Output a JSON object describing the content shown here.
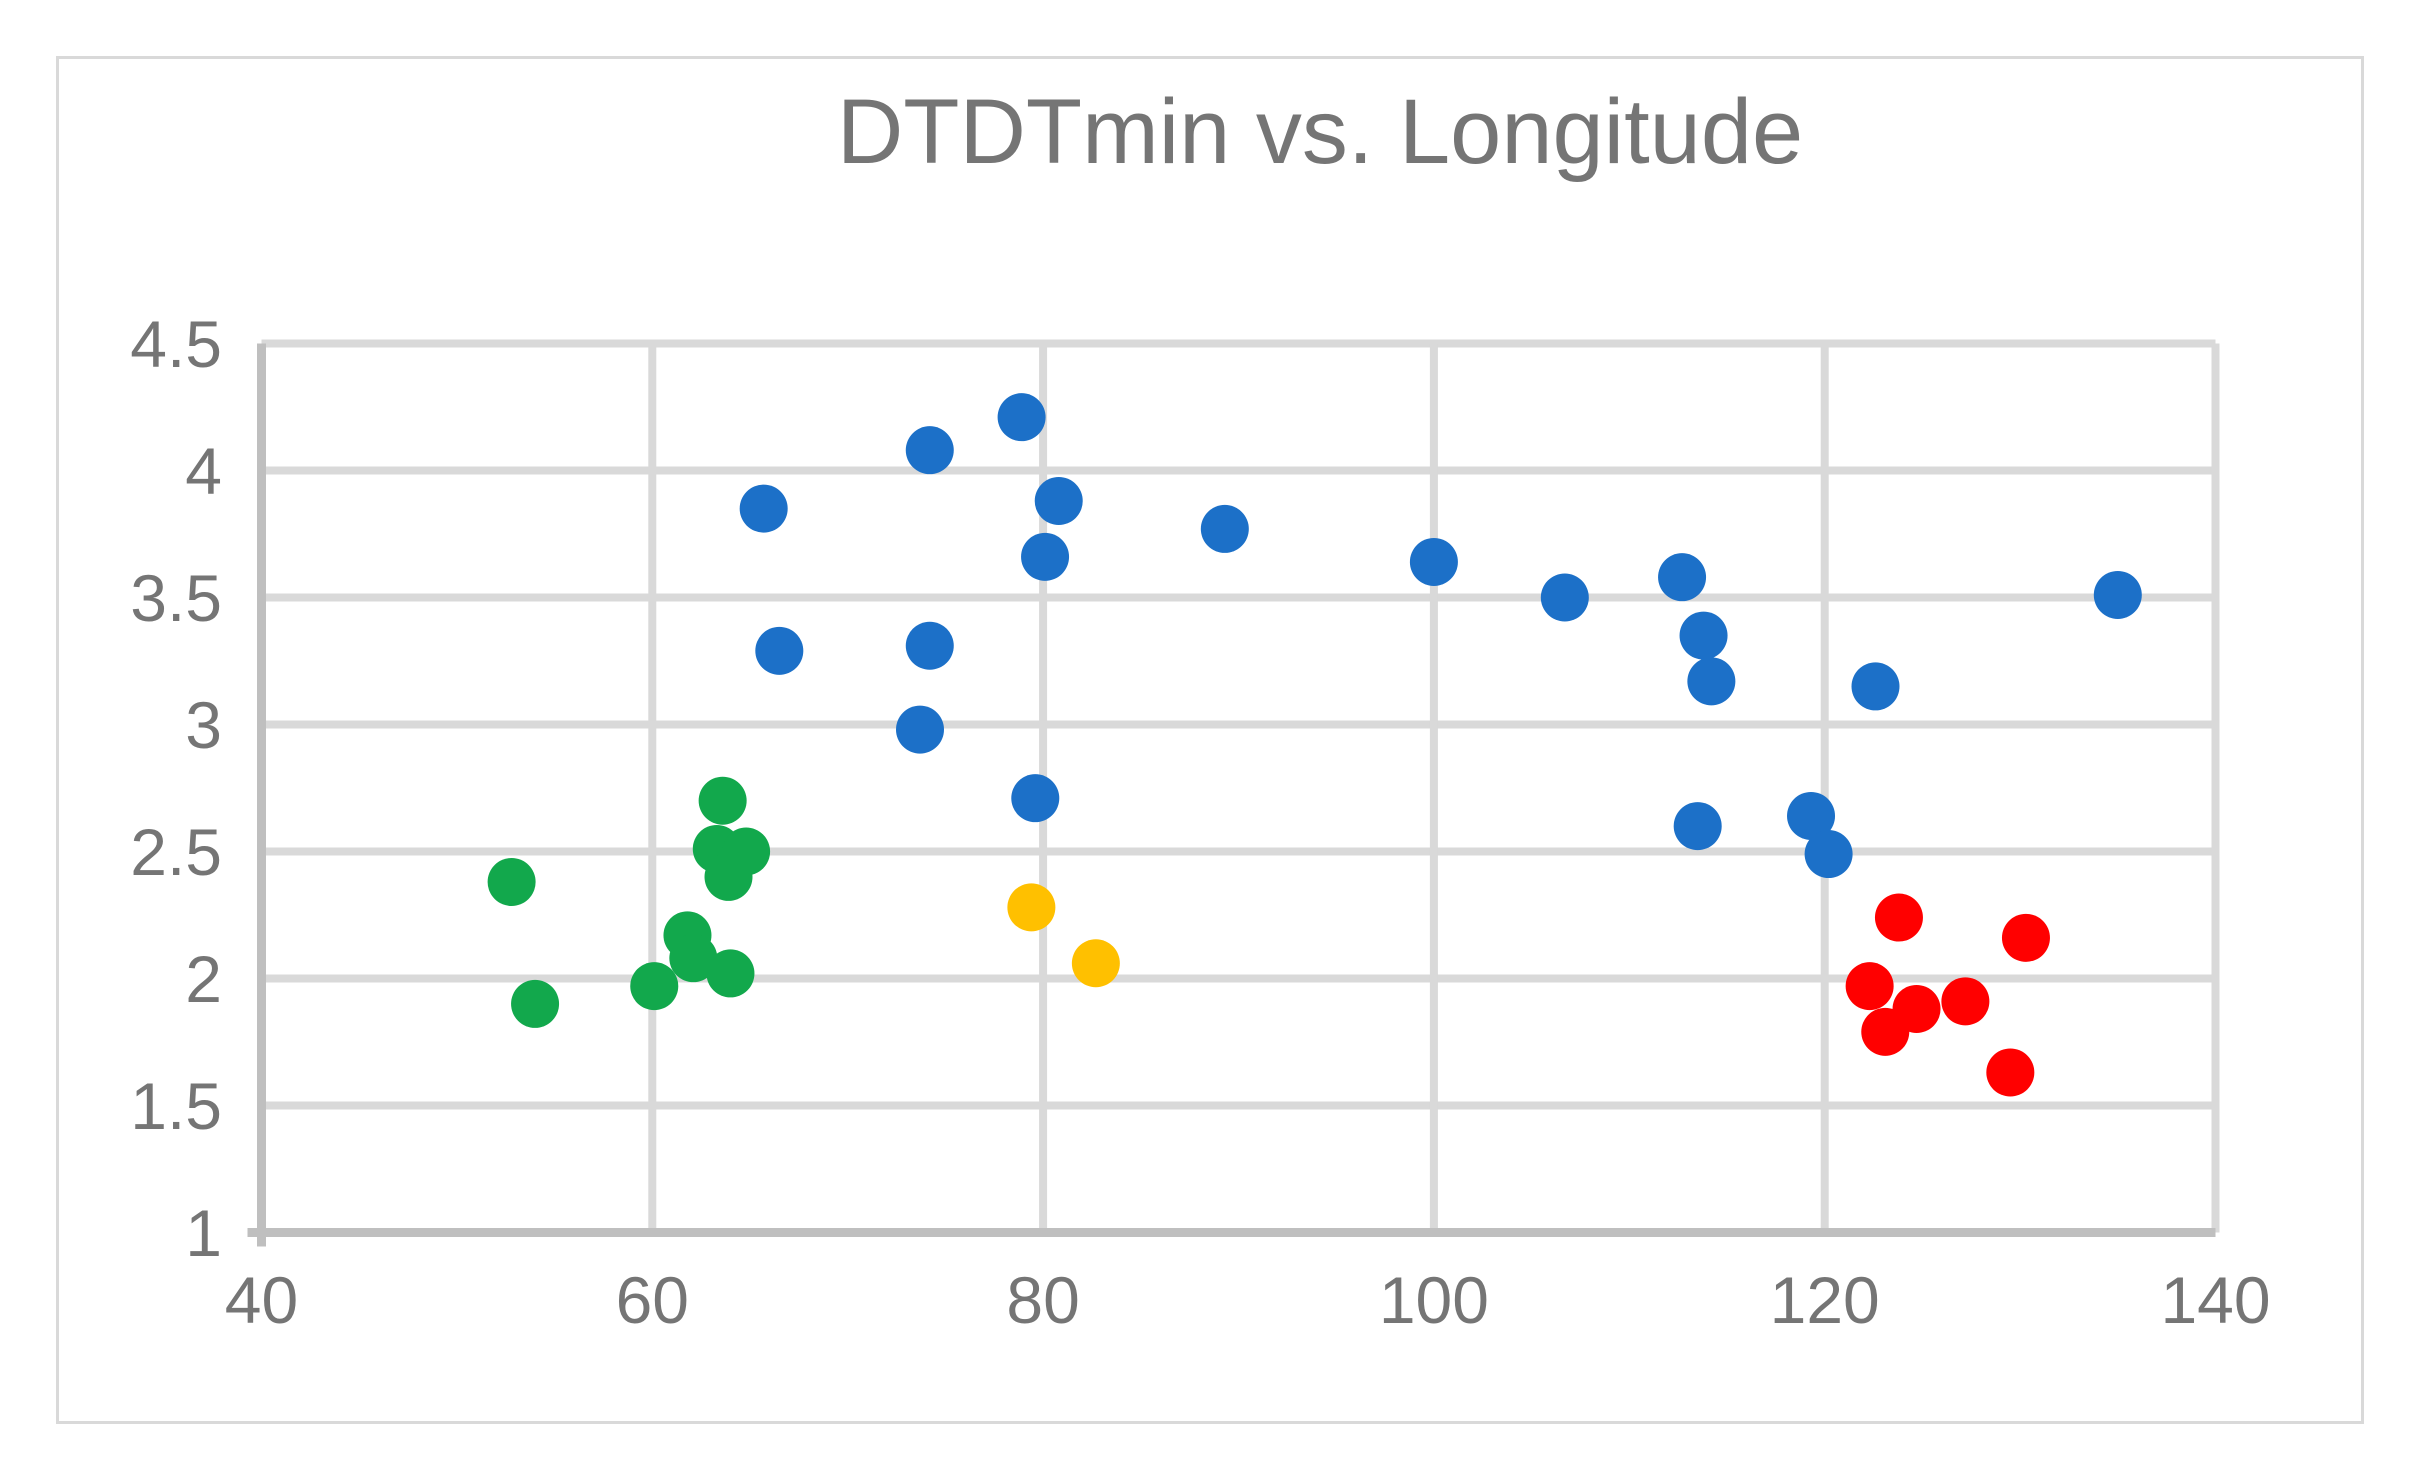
{
  "title": "DTDTmin vs. Longitude",
  "chart_data": {
    "type": "scatter",
    "title": "DTDTmin vs. Longitude",
    "xlabel": "",
    "ylabel": "",
    "xlim": [
      40,
      140
    ],
    "ylim": [
      1,
      4.5
    ],
    "grid": true,
    "legend": "none",
    "style": {
      "gridline_color": "#D9D9D9",
      "axis_color": "#BFBFBF",
      "title_color": "#757575",
      "tick_label_color": "#757575",
      "frame_border_color": "#D9D9D9"
    },
    "x_axis": {
      "ticks": [
        {
          "value": 40,
          "label": "40"
        },
        {
          "value": 60,
          "label": "60"
        },
        {
          "value": 80,
          "label": "80"
        },
        {
          "value": 100,
          "label": "100"
        },
        {
          "value": 120,
          "label": "120"
        },
        {
          "value": 140,
          "label": "140"
        }
      ]
    },
    "y_axis": {
      "ticks": [
        {
          "value": 1,
          "label": "1"
        },
        {
          "value": 1.5,
          "label": "1.5"
        },
        {
          "value": 2,
          "label": "2"
        },
        {
          "value": 2.5,
          "label": "2.5"
        },
        {
          "value": 3,
          "label": "3"
        },
        {
          "value": 3.5,
          "label": "3.5"
        },
        {
          "value": 4,
          "label": "4"
        },
        {
          "value": 4.5,
          "label": "4.5"
        }
      ]
    },
    "series": [
      {
        "name": "blue",
        "color": "#1C70C8",
        "points": [
          [
            65.7,
            3.85
          ],
          [
            66.5,
            3.29
          ],
          [
            73.7,
            2.98
          ],
          [
            74.2,
            4.08
          ],
          [
            74.2,
            3.31
          ],
          [
            78.9,
            4.21
          ],
          [
            79.6,
            2.71
          ],
          [
            80.1,
            3.66
          ],
          [
            80.8,
            3.88
          ],
          [
            89.3,
            3.77
          ],
          [
            100.0,
            3.64
          ],
          [
            106.7,
            3.5
          ],
          [
            112.7,
            3.58
          ],
          [
            113.5,
            2.6
          ],
          [
            113.8,
            3.35
          ],
          [
            114.2,
            3.17
          ],
          [
            119.3,
            2.64
          ],
          [
            120.2,
            2.49
          ],
          [
            122.6,
            3.15
          ],
          [
            135.0,
            3.51
          ]
        ]
      },
      {
        "name": "green",
        "color": "#12A84C",
        "points": [
          [
            52.8,
            2.38
          ],
          [
            54.0,
            1.9
          ],
          [
            60.1,
            1.97
          ],
          [
            61.8,
            2.17
          ],
          [
            62.1,
            2.08
          ],
          [
            64.0,
            2.02
          ],
          [
            63.6,
            2.7
          ],
          [
            63.3,
            2.51
          ],
          [
            64.8,
            2.5
          ],
          [
            63.9,
            2.4
          ]
        ]
      },
      {
        "name": "yellow",
        "color": "#FFC000",
        "points": [
          [
            79.4,
            2.28
          ],
          [
            82.7,
            2.06
          ]
        ]
      },
      {
        "name": "red",
        "color": "#FF0000",
        "points": [
          [
            123.8,
            2.24
          ],
          [
            130.3,
            2.16
          ],
          [
            122.3,
            1.97
          ],
          [
            124.7,
            1.88
          ],
          [
            123.1,
            1.79
          ],
          [
            127.2,
            1.91
          ],
          [
            129.5,
            1.63
          ]
        ]
      }
    ]
  }
}
